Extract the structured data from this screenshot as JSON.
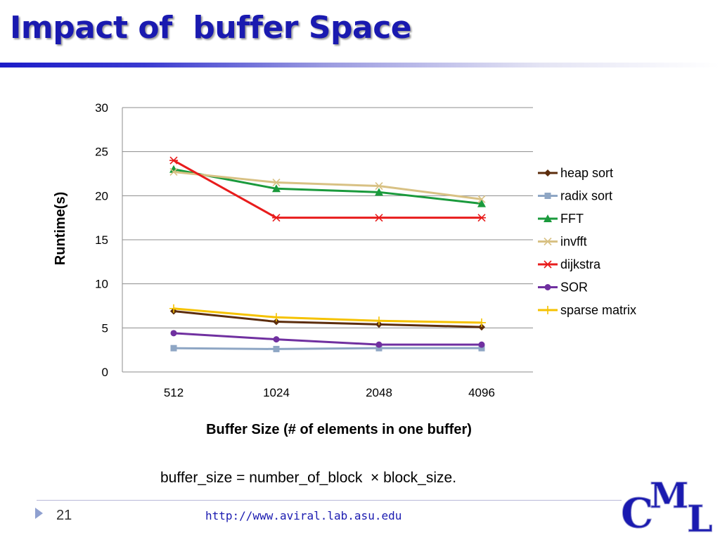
{
  "slide": {
    "title": "Impact of  buffer Space",
    "formula": "buffer_size = number_of_block  × block_size.",
    "page_number": "21",
    "url": "http://www.aviral.lab.asu.edu",
    "logo_text": "CML"
  },
  "chart_data": {
    "type": "line",
    "title": "",
    "xlabel": "Buffer Size (# of elements in one buffer)",
    "ylabel": "Runtime(s)",
    "categories": [
      "512",
      "1024",
      "2048",
      "4096"
    ],
    "ylim": [
      0,
      30
    ],
    "yticks": [
      0,
      5,
      10,
      15,
      20,
      25,
      30
    ],
    "grid": true,
    "legend_position": "right",
    "series": [
      {
        "name": "heap sort",
        "values": [
          6.9,
          5.7,
          5.4,
          5.1
        ],
        "color": "#5c2d0c",
        "marker": "diamond"
      },
      {
        "name": "radix sort",
        "values": [
          2.7,
          2.6,
          2.7,
          2.7
        ],
        "color": "#8ea6c4",
        "marker": "square"
      },
      {
        "name": "FFT",
        "values": [
          23.0,
          20.8,
          20.4,
          19.1
        ],
        "color": "#1a9a3c",
        "marker": "triangle"
      },
      {
        "name": "invfft",
        "values": [
          22.7,
          21.5,
          21.1,
          19.6
        ],
        "color": "#d8c184",
        "marker": "x"
      },
      {
        "name": "dijkstra",
        "values": [
          24.0,
          17.5,
          17.5,
          17.5
        ],
        "color": "#e81c1c",
        "marker": "star"
      },
      {
        "name": "SOR",
        "values": [
          4.4,
          3.7,
          3.1,
          3.1
        ],
        "color": "#7030a0",
        "marker": "circle"
      },
      {
        "name": "sparse matrix",
        "values": [
          7.2,
          6.2,
          5.8,
          5.6
        ],
        "color": "#f5c200",
        "marker": "plus"
      }
    ]
  }
}
